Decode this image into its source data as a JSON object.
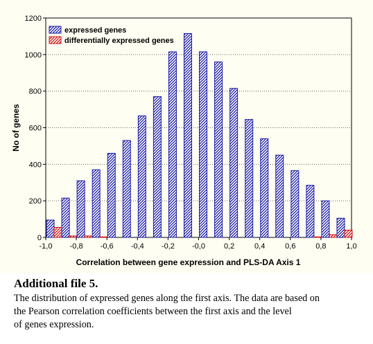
{
  "chart_data": {
    "type": "bar",
    "xlabel": "Correlation between gene expression and  PLS-DA Axis 1",
    "ylabel": "No of genes",
    "xlim": [
      -1.0,
      1.0
    ],
    "ylim": [
      0,
      1200
    ],
    "x_ticks": [
      "-1,0",
      "-0,8",
      "-0,6",
      "-0,4",
      "-0,2",
      "-0,0",
      "0,2",
      "0,4",
      "0,6",
      "0,8",
      "1,0"
    ],
    "y_ticks": [
      "0",
      "200",
      "400",
      "600",
      "800",
      "1000",
      "1200"
    ],
    "grid": "horizontal dotted",
    "legend_position": "top-left",
    "x": [
      -0.95,
      -0.85,
      -0.75,
      -0.65,
      -0.55,
      -0.45,
      -0.35,
      -0.25,
      -0.15,
      -0.05,
      0.05,
      0.15,
      0.25,
      0.35,
      0.45,
      0.55,
      0.65,
      0.75,
      0.85,
      0.95
    ],
    "series": [
      {
        "name": "expressed genes",
        "color": "#1a1aa8",
        "pattern": "diagonal-hatch",
        "values": [
          95,
          215,
          310,
          370,
          460,
          530,
          665,
          770,
          1015,
          1115,
          1015,
          960,
          815,
          645,
          540,
          450,
          365,
          285,
          200,
          105
        ]
      },
      {
        "name": "differentially expressed genes",
        "color": "#cc1111",
        "pattern": "diagonal-hatch",
        "values": [
          55,
          8,
          8,
          3,
          0,
          0,
          0,
          0,
          0,
          0,
          0,
          0,
          0,
          0,
          0,
          0,
          0,
          3,
          15,
          40
        ]
      }
    ]
  },
  "caption": {
    "title": "Additional file 5.",
    "lines": [
      "The distribution of expressed genes along the first axis. The data are based on",
      " the Pearson correlation coefficients between the first axis and the level",
      " of genes expression."
    ]
  }
}
